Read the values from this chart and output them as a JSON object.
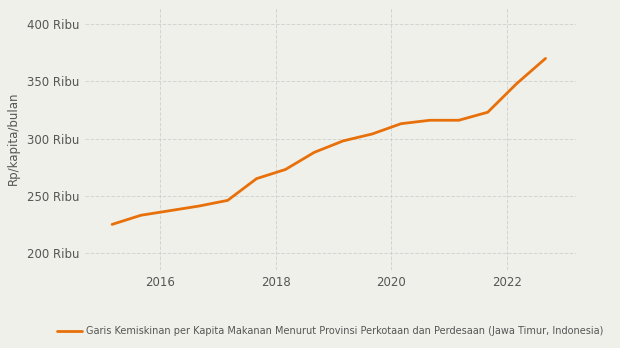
{
  "x_values": [
    2015.17,
    2015.67,
    2016.17,
    2016.67,
    2017.17,
    2017.67,
    2018.17,
    2018.67,
    2019.17,
    2019.67,
    2020.17,
    2020.67,
    2021.17,
    2021.67,
    2022.17,
    2022.67
  ],
  "y_values": [
    225000,
    233000,
    237000,
    241000,
    246000,
    265000,
    273000,
    288000,
    298000,
    304000,
    313000,
    316000,
    316000,
    323000,
    348000,
    370000
  ],
  "line_color": "#E8700A",
  "line_width": 2.0,
  "ylabel": "Rp/kapita/bulan",
  "ytick_labels": [
    "200 Ribu",
    "250 Ribu",
    "300 Ribu",
    "350 Ribu",
    "400 Ribu"
  ],
  "ytick_values": [
    200000,
    250000,
    300000,
    350000,
    400000
  ],
  "ylim": [
    185000,
    415000
  ],
  "xlim": [
    2014.7,
    2023.2
  ],
  "xtick_values": [
    2016,
    2018,
    2020,
    2022
  ],
  "xtick_labels": [
    "2016",
    "2018",
    "2020",
    "2022"
  ],
  "legend_label": "Garis Kemiskinan per Kapita Makanan Menurut Provinsi Perkotaan dan Perdesaan (Jawa Timur, Indonesia)",
  "background_color": "#f0f0eb",
  "grid_color": "#cccccc"
}
